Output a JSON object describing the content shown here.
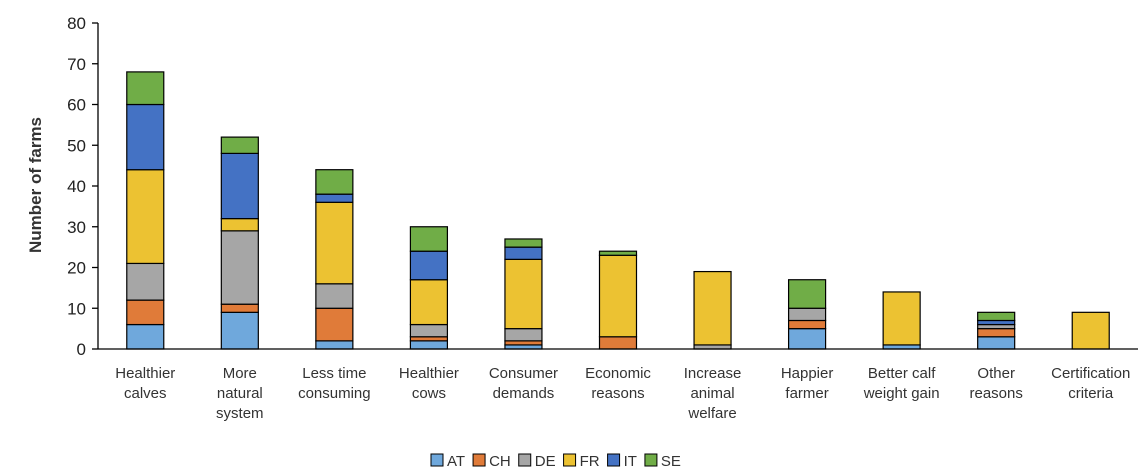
{
  "chart_data": {
    "type": "bar",
    "stacked": true,
    "ylabel": "Number of farms",
    "ylim": [
      0,
      80
    ],
    "yticks": [
      0,
      10,
      20,
      30,
      40,
      50,
      60,
      70,
      80
    ],
    "grid": false,
    "legend_position": "bottom",
    "categories": [
      [
        "Healthier",
        "calves"
      ],
      [
        "More",
        "natural",
        "system"
      ],
      [
        "Less time",
        "consuming"
      ],
      [
        "Healthier",
        "cows"
      ],
      [
        "Consumer",
        "demands"
      ],
      [
        "Economic",
        "reasons"
      ],
      [
        "Increase",
        "animal",
        "welfare"
      ],
      [
        "Happier",
        "farmer"
      ],
      [
        "Better calf",
        "weight gain"
      ],
      [
        "Other",
        "reasons"
      ],
      [
        "Certification",
        "criteria"
      ]
    ],
    "series": [
      {
        "name": "AT",
        "color": "#6fa8dc",
        "values": [
          6,
          9,
          2,
          2,
          1,
          0,
          0,
          5,
          1,
          3,
          0
        ]
      },
      {
        "name": "CH",
        "color": "#e07b39",
        "values": [
          6,
          2,
          8,
          1,
          1,
          3,
          0,
          2,
          0,
          2,
          0
        ]
      },
      {
        "name": "DE",
        "color": "#a6a6a6",
        "values": [
          9,
          18,
          6,
          3,
          3,
          0,
          1,
          3,
          0,
          1,
          0
        ]
      },
      {
        "name": "FR",
        "color": "#ecc232",
        "values": [
          23,
          3,
          20,
          11,
          17,
          20,
          18,
          0,
          13,
          0,
          9
        ]
      },
      {
        "name": "IT",
        "color": "#4472c4",
        "values": [
          16,
          16,
          2,
          7,
          3,
          0,
          0,
          0,
          0,
          1,
          0
        ]
      },
      {
        "name": "SE",
        "color": "#70ad47",
        "values": [
          8,
          4,
          6,
          6,
          2,
          1,
          0,
          7,
          0,
          2,
          0
        ]
      }
    ]
  }
}
